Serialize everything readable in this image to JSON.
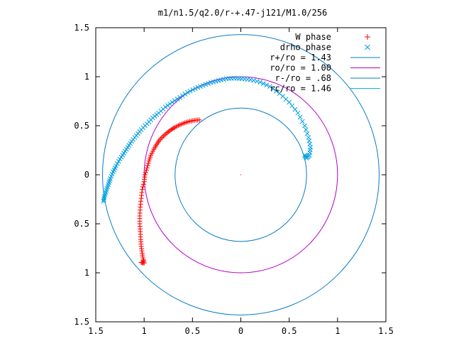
{
  "chart_data": {
    "type": "scatter",
    "title": "m1/n1.5/q2.0/r-+.47-j121/M1.0/256",
    "xlabel": "",
    "ylabel": "",
    "xlim": [
      -1.5,
      1.5
    ],
    "ylim": [
      -1.5,
      1.5
    ],
    "x_ticks": [
      -1.5,
      -1,
      -0.5,
      0,
      0.5,
      1,
      1.5
    ],
    "x_tick_labels": [
      "1.5",
      "1",
      "0.5",
      "0",
      "0.5",
      "1",
      "1.5"
    ],
    "y_ticks": [
      1.5,
      1,
      0.5,
      0,
      -0.5,
      -1,
      -1.5
    ],
    "y_tick_labels": [
      "1.5",
      "1",
      "0.5",
      "0",
      "0.5",
      "1",
      "1.5"
    ],
    "grid": false,
    "legend_position": "top-right",
    "legend": [
      {
        "label": "W phase",
        "marker": "plus",
        "color": "#ff0000"
      },
      {
        "label": "drho phase",
        "marker": "cross",
        "color": "#009ee0"
      },
      {
        "label": "r+/ro = 1.43",
        "marker": "line",
        "color": "#0a7cc4"
      },
      {
        "label": "ro/ro = 1.00",
        "marker": "line",
        "color": "#b400c8"
      },
      {
        "label": "r-/ro = .68",
        "marker": "line",
        "color": "#0a7cc4"
      },
      {
        "label": "rc/ro = 1.46",
        "marker": "line",
        "color": "#00bcd4"
      }
    ],
    "circles": [
      {
        "name": "r+/ro",
        "radius": 1.43,
        "color": "#0a7cc4"
      },
      {
        "name": "ro/ro",
        "radius": 1.0,
        "color": "#b400c8"
      },
      {
        "name": "r-/ro",
        "radius": 0.68,
        "color": "#0a7cc4"
      }
    ],
    "series": [
      {
        "name": "W phase",
        "marker": "plus",
        "color": "#ff0000",
        "points": [
          [
            -0.43,
            0.56
          ],
          [
            -0.48,
            0.555
          ],
          [
            -0.53,
            0.545
          ],
          [
            -0.58,
            0.53
          ],
          [
            -0.63,
            0.51
          ],
          [
            -0.68,
            0.485
          ],
          [
            -0.72,
            0.46
          ],
          [
            -0.76,
            0.43
          ],
          [
            -0.8,
            0.395
          ],
          [
            -0.84,
            0.355
          ],
          [
            -0.87,
            0.31
          ],
          [
            -0.9,
            0.26
          ],
          [
            -0.93,
            0.2
          ],
          [
            -0.95,
            0.14
          ],
          [
            -0.97,
            0.07
          ],
          [
            -0.99,
            0.0
          ],
          [
            -1.0,
            -0.07
          ],
          [
            -1.02,
            -0.15
          ],
          [
            -1.03,
            -0.24
          ],
          [
            -1.04,
            -0.33
          ],
          [
            -1.045,
            -0.42
          ],
          [
            -1.045,
            -0.5
          ],
          [
            -1.04,
            -0.58
          ],
          [
            -1.035,
            -0.66
          ],
          [
            -1.03,
            -0.73
          ],
          [
            -1.02,
            -0.8
          ],
          [
            -1.01,
            -0.86
          ],
          [
            -1.0,
            -0.9
          ],
          [
            -1.03,
            -0.895
          ]
        ]
      },
      {
        "name": "drho phase",
        "marker": "cross",
        "color": "#009ee0",
        "points": [
          [
            -1.42,
            -0.27
          ],
          [
            -1.41,
            -0.22
          ],
          [
            -1.39,
            -0.16
          ],
          [
            -1.37,
            -0.1
          ],
          [
            -1.35,
            -0.04
          ],
          [
            -1.32,
            0.03
          ],
          [
            -1.29,
            0.09
          ],
          [
            -1.25,
            0.16
          ],
          [
            -1.21,
            0.22
          ],
          [
            -1.17,
            0.28
          ],
          [
            -1.13,
            0.34
          ],
          [
            -1.08,
            0.4
          ],
          [
            -1.03,
            0.46
          ],
          [
            -0.97,
            0.52
          ],
          [
            -0.91,
            0.58
          ],
          [
            -0.85,
            0.63
          ],
          [
            -0.78,
            0.69
          ],
          [
            -0.71,
            0.74
          ],
          [
            -0.63,
            0.79
          ],
          [
            -0.55,
            0.84
          ],
          [
            -0.47,
            0.88
          ],
          [
            -0.39,
            0.91
          ],
          [
            -0.31,
            0.94
          ],
          [
            -0.23,
            0.96
          ],
          [
            -0.15,
            0.98
          ],
          [
            -0.07,
            0.985
          ],
          [
            0.01,
            0.98
          ],
          [
            0.1,
            0.97
          ],
          [
            0.2,
            0.945
          ],
          [
            0.3,
            0.9
          ],
          [
            0.4,
            0.83
          ],
          [
            0.5,
            0.74
          ],
          [
            0.59,
            0.63
          ],
          [
            0.66,
            0.5
          ],
          [
            0.7,
            0.38
          ],
          [
            0.72,
            0.28
          ],
          [
            0.71,
            0.2
          ],
          [
            0.68,
            0.17
          ],
          [
            0.66,
            0.2
          ]
        ]
      }
    ]
  }
}
